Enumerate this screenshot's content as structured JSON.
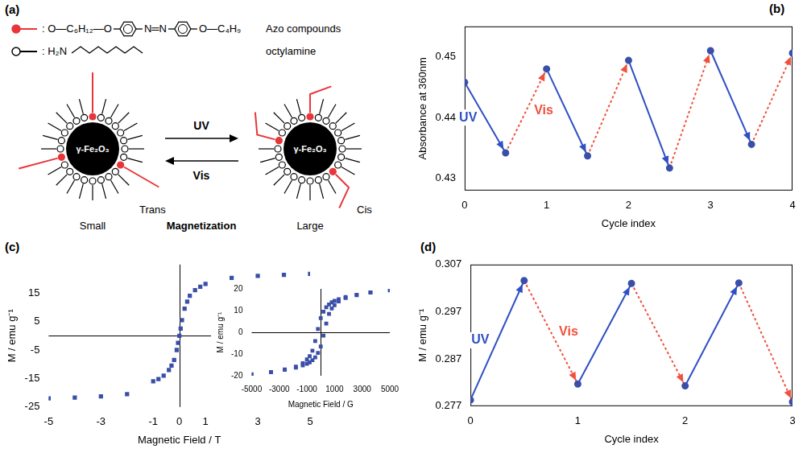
{
  "diagram": {
    "label": "(a)",
    "legend": [
      {
        "formula_parts": [
          ": O—C₆H₁₂—O",
          "N═N",
          "O—C₄H₉"
        ],
        "name": "Azo compounds",
        "color": "#e8353a"
      },
      {
        "formula_parts": [
          ": H₂N"
        ],
        "name": "octylamine"
      }
    ],
    "particles": [
      {
        "core": "γ-Fe₂O₃",
        "conformation": "Trans",
        "size": "Small"
      },
      {
        "core": "γ-Fe₂O₃",
        "conformation": "Cis",
        "size": "Large"
      }
    ],
    "forward": "UV",
    "backward": "Vis",
    "caption": "Magnetization"
  },
  "chart_data": [
    {
      "type": "line",
      "label": "(b)",
      "x_label": "Cycle index",
      "y_label": "Absorbance at 360nm",
      "x": [
        0,
        0.5,
        1,
        1.5,
        2,
        2.5,
        3,
        3.5,
        4
      ],
      "values": [
        0.4458,
        0.4342,
        0.448,
        0.4337,
        0.4494,
        0.4317,
        0.451,
        0.4356,
        0.4506
      ],
      "color": "#3a4fa8",
      "marker": "circle",
      "xlim": [
        0,
        4
      ],
      "xticks": [
        0,
        1,
        2,
        3,
        4
      ],
      "ylim": [
        0.428,
        0.455
      ],
      "yticks": [
        0.43,
        0.44,
        0.45
      ],
      "grid": false,
      "annotations": [
        {
          "text": "UV",
          "color": "#2f4fc4",
          "line_style": "solid"
        },
        {
          "text": "Vis",
          "color": "#f0503c",
          "line_style": "dotted"
        }
      ]
    },
    {
      "type": "scatter",
      "label": "(c)",
      "x_label": "Magnetic Field / T",
      "y_label": "M / emu g⁻¹",
      "x": [
        -5,
        -4,
        -3,
        -2,
        -1,
        -0.8,
        -0.6,
        -0.4,
        -0.3,
        -0.2,
        -0.1,
        -0.05,
        0,
        0.05,
        0.1,
        0.2,
        0.3,
        0.4,
        0.6,
        0.8,
        1,
        2,
        3,
        4,
        5
      ],
      "values": [
        -22,
        -21.7,
        -21.3,
        -20.5,
        -16,
        -15.2,
        -14,
        -12,
        -10.5,
        -8.5,
        -5,
        -2.5,
        0,
        2.5,
        5.5,
        9.5,
        12,
        14,
        16,
        17.2,
        18.2,
        20.3,
        21,
        21.4,
        21.7
      ],
      "color": "#3a4fa8",
      "marker": "rect",
      "xlim": [
        -5,
        5
      ],
      "xticks": [
        -5,
        -3,
        -1,
        0,
        1,
        3,
        5
      ],
      "ylim": [
        -25,
        25
      ],
      "yticks": [
        -25,
        -15,
        -5,
        5,
        15
      ],
      "grid": false
    },
    {
      "type": "scatter",
      "x_label": "Magnetic Field / G",
      "y_label": "M / emu g⁻¹",
      "x": [
        5000,
        3600,
        2600,
        1800,
        1300,
        1000,
        800,
        600,
        400,
        200,
        0,
        -200,
        -400,
        -600,
        -800,
        -1000,
        -1300,
        -1800,
        -2600,
        -3600,
        -5000,
        -3600,
        -2600,
        -1800,
        -1300,
        -1000,
        -800,
        -600,
        -400,
        -200,
        0,
        200,
        400,
        600,
        800,
        1000,
        1300,
        1800,
        2600,
        3600
      ],
      "values": [
        19.3,
        18.4,
        17.3,
        16.2,
        15.2,
        14.5,
        13.8,
        12.8,
        11.5,
        9.5,
        6.5,
        1.5,
        -4,
        -8.5,
        -11,
        -12.5,
        -14.2,
        -15.8,
        -17.1,
        -18.3,
        -19.3,
        -18.4,
        -17.3,
        -16.2,
        -15.2,
        -14.5,
        -13.8,
        -12.8,
        -11.5,
        -9.5,
        -6.5,
        -1.5,
        4,
        8.5,
        11,
        12.5,
        14.2,
        15.8,
        17.1,
        18.3
      ],
      "color": "#3a4fa8",
      "marker": "rect",
      "xlim": [
        -5000,
        5000
      ],
      "xticks": [
        -5000,
        -3000,
        -1000,
        1000,
        3000,
        5000
      ],
      "ylim": [
        -20,
        20
      ],
      "yticks": [
        -20,
        -10,
        0,
        10,
        20
      ],
      "grid": false
    },
    {
      "type": "line",
      "label": "(d)",
      "x_label": "Cycle index",
      "y_label": "M / emu g⁻¹",
      "x": [
        0,
        0.5,
        1,
        1.5,
        2,
        2.5,
        3
      ],
      "values": [
        0.2783,
        0.3036,
        0.2817,
        0.303,
        0.2813,
        0.3031,
        0.2779
      ],
      "color": "#3a4fa8",
      "marker": "circle",
      "xlim": [
        0,
        3
      ],
      "xticks": [
        0,
        1,
        2,
        3
      ],
      "ylim": [
        0.277,
        0.307
      ],
      "yticks": [
        0.277,
        0.287,
        0.297,
        0.307
      ],
      "grid": false,
      "annotations": [
        {
          "text": "UV",
          "color": "#2f4fc4",
          "line_style": "solid"
        },
        {
          "text": "Vis",
          "color": "#f0503c",
          "line_style": "dotted"
        }
      ]
    }
  ]
}
